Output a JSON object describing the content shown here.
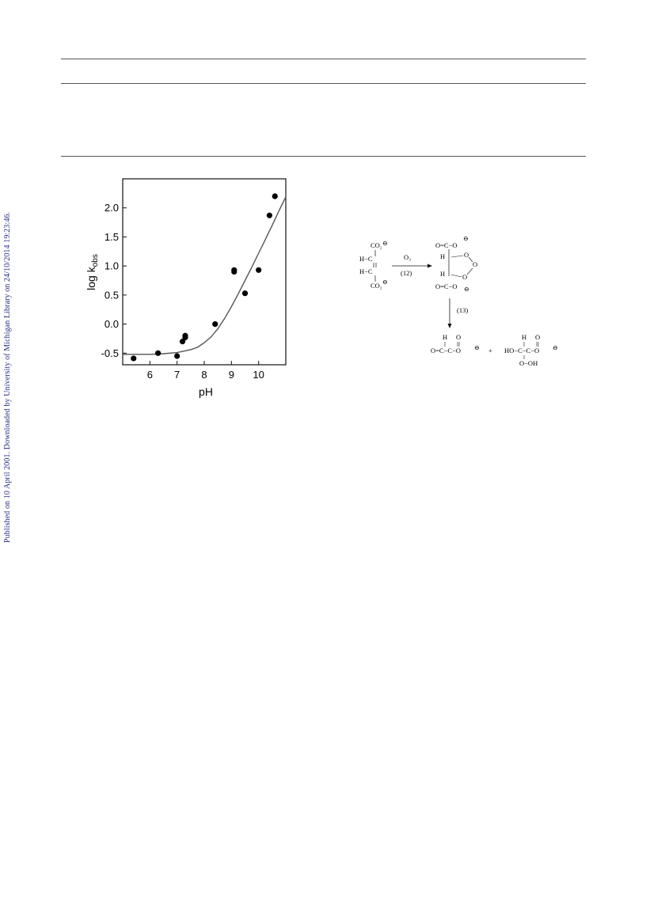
{
  "watermark": "Published on 10 April 2001. Downloaded by University of Michigan Library on 24/10/2014 19:23:46.",
  "chart_data": {
    "type": "scatter",
    "ylabel": "log k",
    "ylabel_sub": "obs",
    "xlabel": "pH",
    "xlim": [
      5.0,
      11.0
    ],
    "ylim": [
      -0.7,
      2.5
    ],
    "x_ticks": [
      "6",
      "7",
      "8",
      "9",
      "10"
    ],
    "y_ticks": [
      "-0.5",
      "0.0",
      "0.5",
      "1.0",
      "1.5",
      "2.0"
    ],
    "points": {
      "x": [
        5.4,
        6.3,
        7.0,
        7.2,
        7.3,
        7.3,
        8.4,
        9.1,
        9.1,
        9.5,
        10.0,
        10.4,
        10.6
      ],
      "y": [
        -0.59,
        -0.5,
        -0.55,
        -0.3,
        -0.23,
        -0.2,
        0.0,
        0.9,
        0.93,
        0.53,
        0.93,
        1.87,
        2.2
      ]
    },
    "fit_curve": {
      "x": [
        5.0,
        5.5,
        6.0,
        6.5,
        7.0,
        7.5,
        7.75,
        8.0,
        8.25,
        8.5,
        8.75,
        9.0,
        9.25,
        9.5,
        9.75,
        10.0,
        10.25,
        10.5,
        10.75,
        11.0
      ],
      "y": [
        -0.52,
        -0.52,
        -0.52,
        -0.51,
        -0.49,
        -0.44,
        -0.4,
        -0.32,
        -0.22,
        -0.08,
        0.1,
        0.3,
        0.52,
        0.75,
        0.98,
        1.22,
        1.46,
        1.7,
        1.95,
        2.19
      ]
    },
    "grid": false
  },
  "scheme": {
    "reactant_top": "CO₂",
    "reactant_c1": "H−C",
    "reactant_c2": "H−C",
    "reactant_bottom": "CO₂",
    "reagent": "O₃",
    "step1": "(12)",
    "step2": "(13)",
    "ozonide_top": "O=C−O",
    "ozonide_h1": "H",
    "ozonide_h2": "H",
    "ozonide_bottom": "O=C−O",
    "ring_o": "O",
    "prod1_h": "H",
    "prod1_o": "O",
    "prod1_main": "O=C−C−O",
    "plus": "+",
    "prod2_h": "H",
    "prod2_o": "O",
    "prod2_main": "HO−C−C−O",
    "prod2_bottom": "O−OH",
    "minus_charge": "⊖"
  }
}
